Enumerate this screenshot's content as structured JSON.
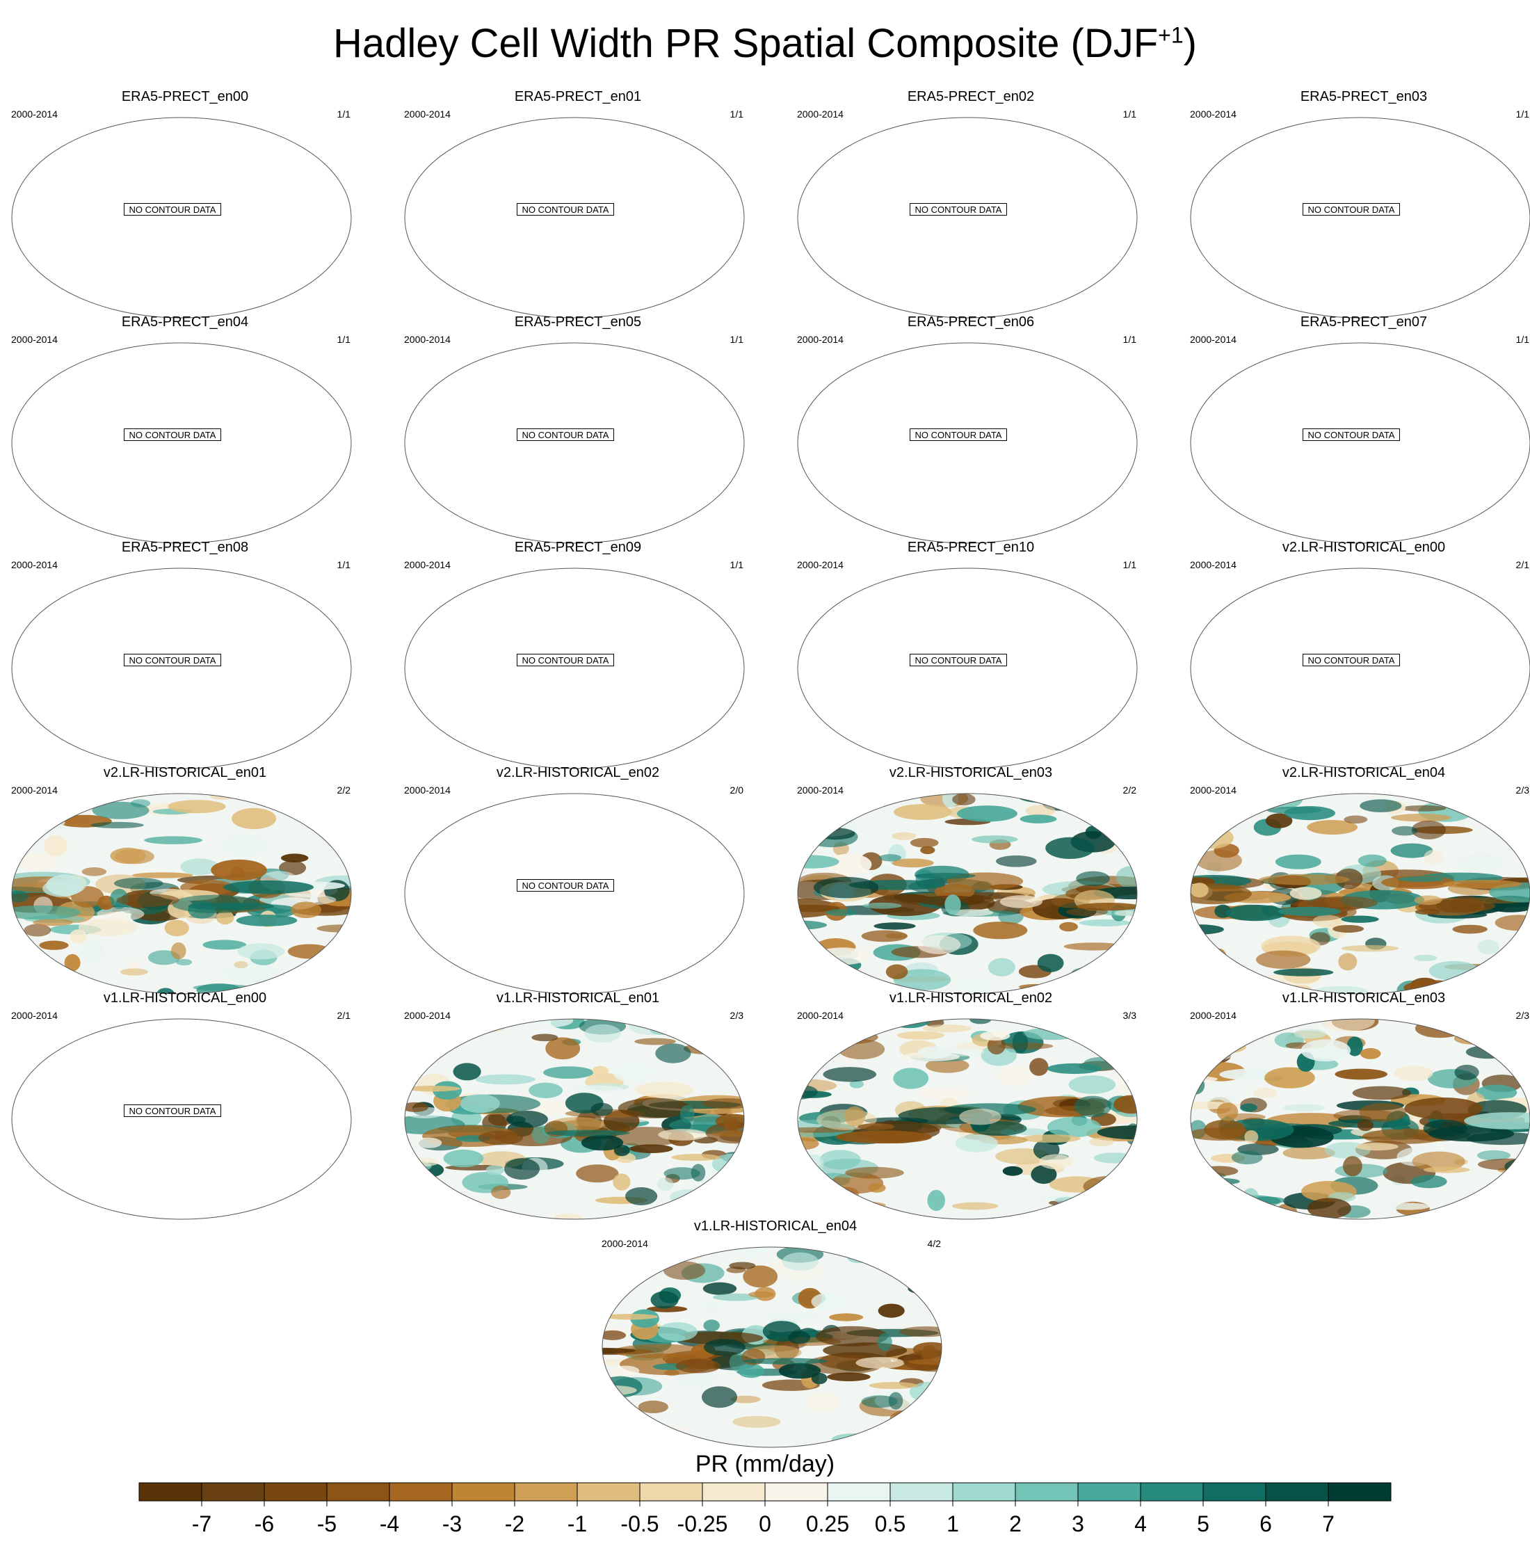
{
  "title": "Hadley Cell Width PR Spatial Composite (DJF",
  "title_superscript": "+1",
  "title_close": ")",
  "panel_period": "2000-2014",
  "no_data_text": "NO CONTOUR DATA",
  "panels": [
    {
      "name": "ERA5-PRECT_en00",
      "count": "1/1",
      "has_data": false
    },
    {
      "name": "ERA5-PRECT_en01",
      "count": "1/1",
      "has_data": false
    },
    {
      "name": "ERA5-PRECT_en02",
      "count": "1/1",
      "has_data": false
    },
    {
      "name": "ERA5-PRECT_en03",
      "count": "1/1",
      "has_data": false
    },
    {
      "name": "ERA5-PRECT_en04",
      "count": "1/1",
      "has_data": false
    },
    {
      "name": "ERA5-PRECT_en05",
      "count": "1/1",
      "has_data": false
    },
    {
      "name": "ERA5-PRECT_en06",
      "count": "1/1",
      "has_data": false
    },
    {
      "name": "ERA5-PRECT_en07",
      "count": "1/1",
      "has_data": false
    },
    {
      "name": "ERA5-PRECT_en08",
      "count": "1/1",
      "has_data": false
    },
    {
      "name": "ERA5-PRECT_en09",
      "count": "1/1",
      "has_data": false
    },
    {
      "name": "ERA5-PRECT_en10",
      "count": "1/1",
      "has_data": false
    },
    {
      "name": "v2.LR-HISTORICAL_en00",
      "count": "2/1",
      "has_data": false
    },
    {
      "name": "v2.LR-HISTORICAL_en01",
      "count": "2/2",
      "has_data": true
    },
    {
      "name": "v2.LR-HISTORICAL_en02",
      "count": "2/0",
      "has_data": false
    },
    {
      "name": "v2.LR-HISTORICAL_en03",
      "count": "2/2",
      "has_data": true
    },
    {
      "name": "v2.LR-HISTORICAL_en04",
      "count": "2/3",
      "has_data": true
    },
    {
      "name": "v1.LR-HISTORICAL_en00",
      "count": "2/1",
      "has_data": false
    },
    {
      "name": "v1.LR-HISTORICAL_en01",
      "count": "2/3",
      "has_data": true
    },
    {
      "name": "v1.LR-HISTORICAL_en02",
      "count": "3/3",
      "has_data": true
    },
    {
      "name": "v1.LR-HISTORICAL_en03",
      "count": "2/3",
      "has_data": true
    },
    {
      "name": "v1.LR-HISTORICAL_en04",
      "count": "4/2",
      "has_data": true
    }
  ],
  "chart_data": {
    "type": "heatmap",
    "colorbar_label": "PR (mm/day)",
    "colorbar_levels": [
      "-7",
      "-6",
      "-5",
      "-4",
      "-3",
      "-2",
      "-1",
      "-0.5",
      "-0.25",
      "0",
      "0.25",
      "0.5",
      "1",
      "2",
      "3",
      "4",
      "5",
      "6",
      "7"
    ],
    "colorbar_colors": [
      "#5a3408",
      "#784611",
      "#8d5515",
      "#a5661f",
      "#bf8434",
      "#cf9f55",
      "#e0bf7e",
      "#eed7a8",
      "#f6ead0",
      "#f8f4ea",
      "#e9f5f2",
      "#c7e9e2",
      "#9fd9cf",
      "#73c4b6",
      "#47a99a",
      "#268a7c",
      "#0f6e61",
      "#065448",
      "#013c33"
    ]
  }
}
